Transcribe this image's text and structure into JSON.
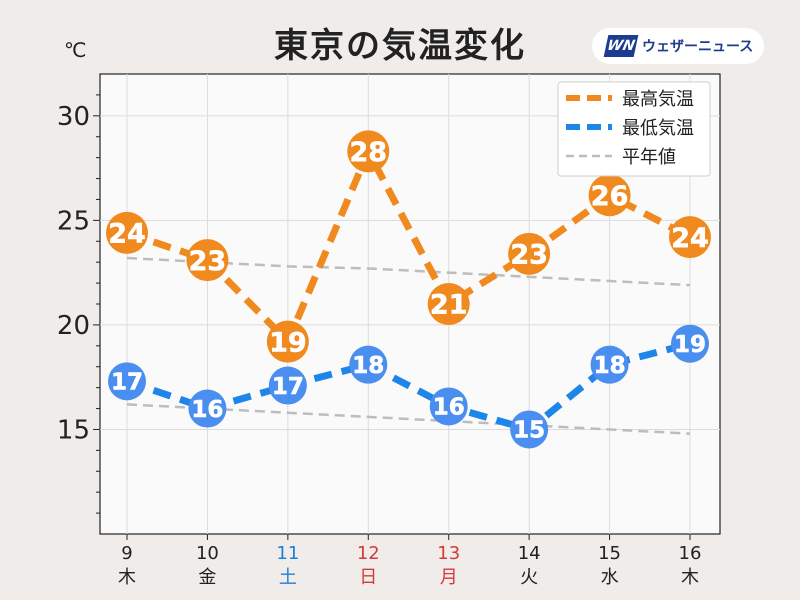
{
  "title": "東京の気温変化",
  "unit_label": "℃",
  "logo": {
    "mark": "WN",
    "name": "ウェザーニュース"
  },
  "chart_data": {
    "type": "line",
    "x": [
      "9",
      "10",
      "11",
      "12",
      "13",
      "14",
      "15",
      "16"
    ],
    "weekdays": [
      "木",
      "金",
      "土",
      "日",
      "月",
      "火",
      "水",
      "木"
    ],
    "day_colors": [
      "#222222",
      "#222222",
      "#1e7fd8",
      "#d43a3a",
      "#d43a3a",
      "#222222",
      "#222222",
      "#222222"
    ],
    "ylim": [
      10,
      32
    ],
    "yticks": [
      15,
      20,
      25,
      30
    ],
    "grid": true,
    "legend_position": "top-right",
    "series": [
      {
        "name": "最高気温",
        "values": [
          24,
          23,
          19,
          28,
          21,
          23,
          26,
          24
        ],
        "plot_values": [
          24.4,
          23.1,
          19.2,
          28.3,
          21.0,
          23.4,
          26.2,
          24.2
        ],
        "color": "#f0891e",
        "style": "dashed"
      },
      {
        "name": "最低気温",
        "values": [
          17,
          16,
          17,
          18,
          16,
          15,
          18,
          19
        ],
        "plot_values": [
          17.3,
          16.0,
          17.1,
          18.1,
          16.1,
          15.0,
          18.1,
          19.1
        ],
        "color": "#1e86e8",
        "marker_color": "#4a8ef0",
        "style": "dashed"
      },
      {
        "name": "平年値",
        "values_high": [
          23.2,
          23.0,
          22.8,
          22.7,
          22.5,
          22.3,
          22.1,
          21.9
        ],
        "values_low": [
          16.2,
          16.0,
          15.8,
          15.6,
          15.4,
          15.2,
          15.0,
          14.8
        ],
        "color": "#bdbdbd",
        "style": "dashed"
      }
    ]
  }
}
